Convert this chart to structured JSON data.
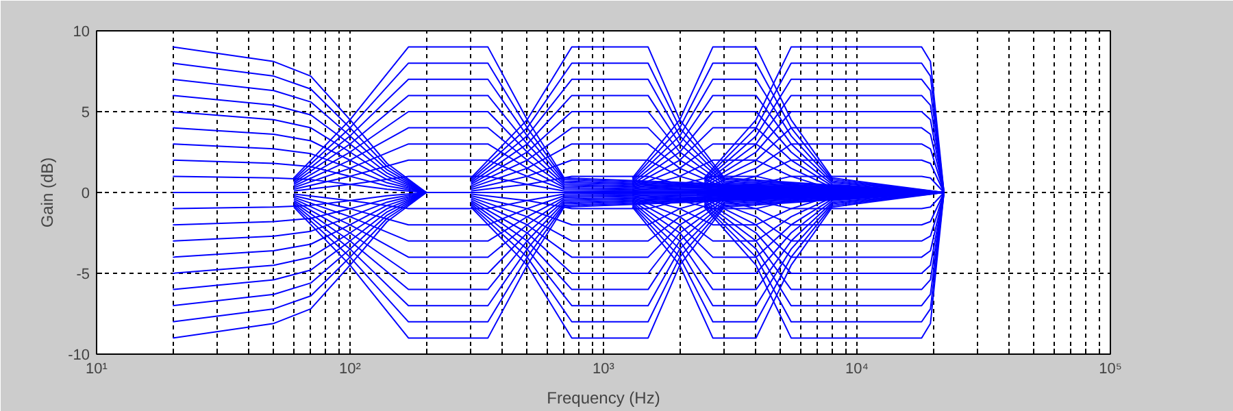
{
  "chart_data": {
    "type": "line",
    "xlabel": "Frequency (Hz)",
    "ylabel": "Gain (dB)",
    "log": "x",
    "grid": true,
    "xlim": [
      10,
      100000
    ],
    "ylim": [
      -10,
      10
    ],
    "xticks": [
      {
        "value": 10,
        "label": "10¹"
      },
      {
        "value": 20,
        "label": null
      },
      {
        "value": 30,
        "label": null
      },
      {
        "value": 40,
        "label": null
      },
      {
        "value": 50,
        "label": null
      },
      {
        "value": 60,
        "label": null
      },
      {
        "value": 70,
        "label": null
      },
      {
        "value": 80,
        "label": null
      },
      {
        "value": 90,
        "label": null
      },
      {
        "value": 100,
        "label": "10²"
      },
      {
        "value": 200,
        "label": null
      },
      {
        "value": 300,
        "label": null
      },
      {
        "value": 400,
        "label": null
      },
      {
        "value": 500,
        "label": null
      },
      {
        "value": 600,
        "label": null
      },
      {
        "value": 700,
        "label": null
      },
      {
        "value": 800,
        "label": null
      },
      {
        "value": 900,
        "label": null
      },
      {
        "value": 1000,
        "label": "10³"
      },
      {
        "value": 2000,
        "label": null
      },
      {
        "value": 3000,
        "label": null
      },
      {
        "value": 4000,
        "label": null
      },
      {
        "value": 5000,
        "label": null
      },
      {
        "value": 6000,
        "label": null
      },
      {
        "value": 7000,
        "label": null
      },
      {
        "value": 8000,
        "label": null
      },
      {
        "value": 9000,
        "label": null
      },
      {
        "value": 10000,
        "label": "10⁴"
      },
      {
        "value": 20000,
        "label": null
      },
      {
        "value": 30000,
        "label": null
      },
      {
        "value": 40000,
        "label": null
      },
      {
        "value": 50000,
        "label": null
      },
      {
        "value": 60000,
        "label": null
      },
      {
        "value": 70000,
        "label": null
      },
      {
        "value": 80000,
        "label": null
      },
      {
        "value": 90000,
        "label": null
      },
      {
        "value": 100000,
        "label": "10⁵"
      }
    ],
    "yticks": [
      -10,
      -5,
      0,
      5,
      10
    ],
    "series": [
      {
        "color": "#0000ff",
        "x": [
          20,
          40
        ],
        "values": [
          0,
          0
        ]
      },
      {
        "color": "#0000ff",
        "x": [
          20,
          50,
          70,
          100,
          140,
          200,
          22050
        ],
        "values": [
          9,
          8.1,
          7.2,
          4.5,
          1.8,
          0,
          0
        ]
      },
      {
        "color": "#0000ff",
        "x": [
          20,
          50,
          70,
          100,
          140,
          200,
          22050
        ],
        "values": [
          8,
          7.2,
          6.4,
          4,
          1.6,
          0,
          0
        ]
      },
      {
        "color": "#0000ff",
        "x": [
          20,
          50,
          70,
          100,
          140,
          200,
          22050
        ],
        "values": [
          7,
          6.3,
          5.6,
          3.5,
          1.4,
          0,
          0
        ]
      },
      {
        "color": "#0000ff",
        "x": [
          20,
          50,
          70,
          100,
          140,
          200,
          22050
        ],
        "values": [
          6,
          5.4,
          4.8,
          3,
          1.2,
          0,
          0
        ]
      },
      {
        "color": "#0000ff",
        "x": [
          20,
          50,
          70,
          100,
          140,
          200,
          22050
        ],
        "values": [
          5,
          4.5,
          4,
          2.5,
          1,
          0,
          0
        ]
      },
      {
        "color": "#0000ff",
        "x": [
          20,
          50,
          70,
          100,
          140,
          200,
          22050
        ],
        "values": [
          4,
          3.6,
          3.2,
          2,
          0.8,
          0,
          0
        ]
      },
      {
        "color": "#0000ff",
        "x": [
          20,
          50,
          70,
          100,
          140,
          200,
          22050
        ],
        "values": [
          3,
          2.7,
          2.4,
          1.5,
          0.6,
          0,
          0
        ]
      },
      {
        "color": "#0000ff",
        "x": [
          20,
          50,
          70,
          100,
          140,
          200,
          22050
        ],
        "values": [
          2,
          1.8,
          1.6,
          1,
          0.4,
          0,
          0
        ]
      },
      {
        "color": "#0000ff",
        "x": [
          20,
          50,
          70,
          100,
          140,
          200,
          22050
        ],
        "values": [
          1,
          0.9,
          0.8,
          0.5,
          0.2,
          0,
          0
        ]
      },
      {
        "color": "#0000ff",
        "x": [
          20,
          50,
          70,
          100,
          140,
          200,
          22050
        ],
        "values": [
          -1,
          -0.9,
          -0.8,
          -0.5,
          -0.2,
          0,
          0
        ]
      },
      {
        "color": "#0000ff",
        "x": [
          20,
          50,
          70,
          100,
          140,
          200,
          22050
        ],
        "values": [
          -2,
          -1.8,
          -1.6,
          -1,
          -0.4,
          0,
          0
        ]
      },
      {
        "color": "#0000ff",
        "x": [
          20,
          50,
          70,
          100,
          140,
          200,
          22050
        ],
        "values": [
          -3,
          -2.7,
          -2.4,
          -1.5,
          -0.6,
          0,
          0
        ]
      },
      {
        "color": "#0000ff",
        "x": [
          20,
          50,
          70,
          100,
          140,
          200,
          22050
        ],
        "values": [
          -4,
          -3.6,
          -3.2,
          -2,
          -0.8,
          0,
          0
        ]
      },
      {
        "color": "#0000ff",
        "x": [
          20,
          50,
          70,
          100,
          140,
          200,
          22050
        ],
        "values": [
          -5,
          -4.5,
          -4,
          -2.5,
          -1,
          0,
          0
        ]
      },
      {
        "color": "#0000ff",
        "x": [
          20,
          50,
          70,
          100,
          140,
          200,
          22050
        ],
        "values": [
          -6,
          -5.4,
          -4.8,
          -3,
          -1.2,
          0,
          0
        ]
      },
      {
        "color": "#0000ff",
        "x": [
          20,
          50,
          70,
          100,
          140,
          200,
          22050
        ],
        "values": [
          -7,
          -6.3,
          -5.6,
          -3.5,
          -1.4,
          0,
          0
        ]
      },
      {
        "color": "#0000ff",
        "x": [
          20,
          50,
          70,
          100,
          140,
          200,
          22050
        ],
        "values": [
          -8,
          -7.2,
          -6.4,
          -4,
          -1.6,
          0,
          0
        ]
      },
      {
        "color": "#0000ff",
        "x": [
          20,
          50,
          70,
          100,
          140,
          200,
          22050
        ],
        "values": [
          -9,
          -8.1,
          -7.2,
          -4.5,
          -1.8,
          0,
          0
        ]
      },
      {
        "color": "#0000ff",
        "x": [
          60,
          100,
          170,
          350,
          500,
          700,
          22050
        ],
        "values": [
          0.9,
          4.5,
          9,
          9,
          4.5,
          0.9,
          0
        ]
      },
      {
        "color": "#0000ff",
        "x": [
          60,
          100,
          170,
          350,
          500,
          700,
          22050
        ],
        "values": [
          0.8,
          4,
          8,
          8,
          4,
          0.8,
          0
        ]
      },
      {
        "color": "#0000ff",
        "x": [
          60,
          100,
          170,
          350,
          500,
          700,
          22050
        ],
        "values": [
          0.7,
          3.5,
          7,
          7,
          3.5,
          0.7,
          0
        ]
      },
      {
        "color": "#0000ff",
        "x": [
          60,
          100,
          170,
          350,
          500,
          700,
          22050
        ],
        "values": [
          0.6,
          3,
          6,
          6,
          3,
          0.6,
          0
        ]
      },
      {
        "color": "#0000ff",
        "x": [
          60,
          100,
          170,
          350,
          500,
          700,
          22050
        ],
        "values": [
          0.5,
          2.5,
          5,
          5,
          2.5,
          0.5,
          0
        ]
      },
      {
        "color": "#0000ff",
        "x": [
          60,
          100,
          170,
          350,
          500,
          700,
          22050
        ],
        "values": [
          0.4,
          2,
          4,
          4,
          2,
          0.4,
          0
        ]
      },
      {
        "color": "#0000ff",
        "x": [
          60,
          100,
          170,
          350,
          500,
          700,
          22050
        ],
        "values": [
          0.3,
          1.5,
          3,
          3,
          1.5,
          0.3,
          0
        ]
      },
      {
        "color": "#0000ff",
        "x": [
          60,
          100,
          170,
          350,
          500,
          700,
          22050
        ],
        "values": [
          0.2,
          1,
          2,
          2,
          1,
          0.2,
          0
        ]
      },
      {
        "color": "#0000ff",
        "x": [
          60,
          100,
          170,
          350,
          500,
          700,
          22050
        ],
        "values": [
          0.1,
          0.5,
          1,
          1,
          0.5,
          0.1,
          0
        ]
      },
      {
        "color": "#0000ff",
        "x": [
          60,
          100,
          170,
          350,
          500,
          700,
          22050
        ],
        "values": [
          -0.1,
          -0.5,
          -1,
          -1,
          -0.5,
          -0.1,
          0
        ]
      },
      {
        "color": "#0000ff",
        "x": [
          60,
          100,
          170,
          350,
          500,
          700,
          22050
        ],
        "values": [
          -0.2,
          -1,
          -2,
          -2,
          -1,
          -0.2,
          0
        ]
      },
      {
        "color": "#0000ff",
        "x": [
          60,
          100,
          170,
          350,
          500,
          700,
          22050
        ],
        "values": [
          -0.3,
          -1.5,
          -3,
          -3,
          -1.5,
          -0.3,
          0
        ]
      },
      {
        "color": "#0000ff",
        "x": [
          60,
          100,
          170,
          350,
          500,
          700,
          22050
        ],
        "values": [
          -0.4,
          -2,
          -4,
          -4,
          -2,
          -0.4,
          0
        ]
      },
      {
        "color": "#0000ff",
        "x": [
          60,
          100,
          170,
          350,
          500,
          700,
          22050
        ],
        "values": [
          -0.5,
          -2.5,
          -5,
          -5,
          -2.5,
          -0.5,
          0
        ]
      },
      {
        "color": "#0000ff",
        "x": [
          60,
          100,
          170,
          350,
          500,
          700,
          22050
        ],
        "values": [
          -0.6,
          -3,
          -6,
          -6,
          -3,
          -0.6,
          0
        ]
      },
      {
        "color": "#0000ff",
        "x": [
          60,
          100,
          170,
          350,
          500,
          700,
          22050
        ],
        "values": [
          -0.7,
          -3.5,
          -7,
          -7,
          -3.5,
          -0.7,
          0
        ]
      },
      {
        "color": "#0000ff",
        "x": [
          60,
          100,
          170,
          350,
          500,
          700,
          22050
        ],
        "values": [
          -0.8,
          -4,
          -8,
          -8,
          -4,
          -0.8,
          0
        ]
      },
      {
        "color": "#0000ff",
        "x": [
          60,
          100,
          170,
          350,
          500,
          700,
          22050
        ],
        "values": [
          -0.9,
          -4.5,
          -9,
          -9,
          -4.5,
          -0.9,
          0
        ]
      },
      {
        "color": "#0000ff",
        "x": [
          300,
          500,
          750,
          1500,
          2000,
          3000,
          22050
        ],
        "values": [
          0.9,
          4.5,
          9,
          9,
          4.5,
          0.9,
          0
        ]
      },
      {
        "color": "#0000ff",
        "x": [
          300,
          500,
          750,
          1500,
          2000,
          3000,
          22050
        ],
        "values": [
          0.8,
          4,
          8,
          8,
          4,
          0.8,
          0
        ]
      },
      {
        "color": "#0000ff",
        "x": [
          300,
          500,
          750,
          1500,
          2000,
          3000,
          22050
        ],
        "values": [
          0.7,
          3.5,
          7,
          7,
          3.5,
          0.7,
          0
        ]
      },
      {
        "color": "#0000ff",
        "x": [
          300,
          500,
          750,
          1500,
          2000,
          3000,
          22050
        ],
        "values": [
          0.6,
          3,
          6,
          6,
          3,
          0.6,
          0
        ]
      },
      {
        "color": "#0000ff",
        "x": [
          300,
          500,
          750,
          1500,
          2000,
          3000,
          22050
        ],
        "values": [
          0.5,
          2.5,
          5,
          5,
          2.5,
          0.5,
          0
        ]
      },
      {
        "color": "#0000ff",
        "x": [
          300,
          500,
          750,
          1500,
          2000,
          3000,
          22050
        ],
        "values": [
          0.4,
          2,
          4,
          4,
          2,
          0.4,
          0
        ]
      },
      {
        "color": "#0000ff",
        "x": [
          300,
          500,
          750,
          1500,
          2000,
          3000,
          22050
        ],
        "values": [
          0.3,
          1.5,
          3,
          3,
          1.5,
          0.3,
          0
        ]
      },
      {
        "color": "#0000ff",
        "x": [
          300,
          500,
          750,
          1500,
          2000,
          3000,
          22050
        ],
        "values": [
          0.2,
          1,
          2,
          2,
          1,
          0.2,
          0
        ]
      },
      {
        "color": "#0000ff",
        "x": [
          300,
          500,
          750,
          1500,
          2000,
          3000,
          22050
        ],
        "values": [
          0.1,
          0.5,
          1,
          1,
          0.5,
          0.1,
          0
        ]
      },
      {
        "color": "#0000ff",
        "x": [
          300,
          500,
          750,
          1500,
          2000,
          3000,
          22050
        ],
        "values": [
          -0.1,
          -0.5,
          -1,
          -1,
          -0.5,
          -0.1,
          0
        ]
      },
      {
        "color": "#0000ff",
        "x": [
          300,
          500,
          750,
          1500,
          2000,
          3000,
          22050
        ],
        "values": [
          -0.2,
          -1,
          -2,
          -2,
          -1,
          -0.2,
          0
        ]
      },
      {
        "color": "#0000ff",
        "x": [
          300,
          500,
          750,
          1500,
          2000,
          3000,
          22050
        ],
        "values": [
          -0.3,
          -1.5,
          -3,
          -3,
          -1.5,
          -0.3,
          0
        ]
      },
      {
        "color": "#0000ff",
        "x": [
          300,
          500,
          750,
          1500,
          2000,
          3000,
          22050
        ],
        "values": [
          -0.4,
          -2,
          -4,
          -4,
          -2,
          -0.4,
          0
        ]
      },
      {
        "color": "#0000ff",
        "x": [
          300,
          500,
          750,
          1500,
          2000,
          3000,
          22050
        ],
        "values": [
          -0.5,
          -2.5,
          -5,
          -5,
          -2.5,
          -0.5,
          0
        ]
      },
      {
        "color": "#0000ff",
        "x": [
          300,
          500,
          750,
          1500,
          2000,
          3000,
          22050
        ],
        "values": [
          -0.6,
          -3,
          -6,
          -6,
          -3,
          -0.6,
          0
        ]
      },
      {
        "color": "#0000ff",
        "x": [
          300,
          500,
          750,
          1500,
          2000,
          3000,
          22050
        ],
        "values": [
          -0.7,
          -3.5,
          -7,
          -7,
          -3.5,
          -0.7,
          0
        ]
      },
      {
        "color": "#0000ff",
        "x": [
          300,
          500,
          750,
          1500,
          2000,
          3000,
          22050
        ],
        "values": [
          -0.8,
          -4,
          -8,
          -8,
          -4,
          -0.8,
          0
        ]
      },
      {
        "color": "#0000ff",
        "x": [
          300,
          500,
          750,
          1500,
          2000,
          3000,
          22050
        ],
        "values": [
          -0.9,
          -4.5,
          -9,
          -9,
          -4.5,
          -0.9,
          0
        ]
      },
      {
        "color": "#0000ff",
        "x": [
          1300,
          2000,
          2700,
          4000,
          5500,
          8000,
          22050
        ],
        "values": [
          0.9,
          4.5,
          9,
          9,
          4.5,
          0.9,
          0
        ]
      },
      {
        "color": "#0000ff",
        "x": [
          1300,
          2000,
          2700,
          4000,
          5500,
          8000,
          22050
        ],
        "values": [
          0.8,
          4,
          8,
          8,
          4,
          0.8,
          0
        ]
      },
      {
        "color": "#0000ff",
        "x": [
          1300,
          2000,
          2700,
          4000,
          5500,
          8000,
          22050
        ],
        "values": [
          0.7,
          3.5,
          7,
          7,
          3.5,
          0.7,
          0
        ]
      },
      {
        "color": "#0000ff",
        "x": [
          1300,
          2000,
          2700,
          4000,
          5500,
          8000,
          22050
        ],
        "values": [
          0.6,
          3,
          6,
          6,
          3,
          0.6,
          0
        ]
      },
      {
        "color": "#0000ff",
        "x": [
          1300,
          2000,
          2700,
          4000,
          5500,
          8000,
          22050
        ],
        "values": [
          0.5,
          2.5,
          5,
          5,
          2.5,
          0.5,
          0
        ]
      },
      {
        "color": "#0000ff",
        "x": [
          1300,
          2000,
          2700,
          4000,
          5500,
          8000,
          22050
        ],
        "values": [
          0.4,
          2,
          4,
          4,
          2,
          0.4,
          0
        ]
      },
      {
        "color": "#0000ff",
        "x": [
          1300,
          2000,
          2700,
          4000,
          5500,
          8000,
          22050
        ],
        "values": [
          0.3,
          1.5,
          3,
          3,
          1.5,
          0.3,
          0
        ]
      },
      {
        "color": "#0000ff",
        "x": [
          1300,
          2000,
          2700,
          4000,
          5500,
          8000,
          22050
        ],
        "values": [
          0.2,
          1,
          2,
          2,
          1,
          0.2,
          0
        ]
      },
      {
        "color": "#0000ff",
        "x": [
          1300,
          2000,
          2700,
          4000,
          5500,
          8000,
          22050
        ],
        "values": [
          0.1,
          0.5,
          1,
          1,
          0.5,
          0.1,
          0
        ]
      },
      {
        "color": "#0000ff",
        "x": [
          1300,
          2000,
          2700,
          4000,
          5500,
          8000,
          22050
        ],
        "values": [
          -0.1,
          -0.5,
          -1,
          -1,
          -0.5,
          -0.1,
          0
        ]
      },
      {
        "color": "#0000ff",
        "x": [
          1300,
          2000,
          2700,
          4000,
          5500,
          8000,
          22050
        ],
        "values": [
          -0.2,
          -1,
          -2,
          -2,
          -1,
          -0.2,
          0
        ]
      },
      {
        "color": "#0000ff",
        "x": [
          1300,
          2000,
          2700,
          4000,
          5500,
          8000,
          22050
        ],
        "values": [
          -0.3,
          -1.5,
          -3,
          -3,
          -1.5,
          -0.3,
          0
        ]
      },
      {
        "color": "#0000ff",
        "x": [
          1300,
          2000,
          2700,
          4000,
          5500,
          8000,
          22050
        ],
        "values": [
          -0.4,
          -2,
          -4,
          -4,
          -2,
          -0.4,
          0
        ]
      },
      {
        "color": "#0000ff",
        "x": [
          1300,
          2000,
          2700,
          4000,
          5500,
          8000,
          22050
        ],
        "values": [
          -0.5,
          -2.5,
          -5,
          -5,
          -2.5,
          -0.5,
          0
        ]
      },
      {
        "color": "#0000ff",
        "x": [
          1300,
          2000,
          2700,
          4000,
          5500,
          8000,
          22050
        ],
        "values": [
          -0.6,
          -3,
          -6,
          -6,
          -3,
          -0.6,
          0
        ]
      },
      {
        "color": "#0000ff",
        "x": [
          1300,
          2000,
          2700,
          4000,
          5500,
          8000,
          22050
        ],
        "values": [
          -0.7,
          -3.5,
          -7,
          -7,
          -3.5,
          -0.7,
          0
        ]
      },
      {
        "color": "#0000ff",
        "x": [
          1300,
          2000,
          2700,
          4000,
          5500,
          8000,
          22050
        ],
        "values": [
          -0.8,
          -4,
          -8,
          -8,
          -4,
          -0.8,
          0
        ]
      },
      {
        "color": "#0000ff",
        "x": [
          1300,
          2000,
          2700,
          4000,
          5500,
          8000,
          22050
        ],
        "values": [
          -0.9,
          -4.5,
          -9,
          -9,
          -4.5,
          -0.9,
          0
        ]
      },
      {
        "color": "#0000ff",
        "x": [
          2500,
          4000,
          5500,
          18000,
          19500,
          22050
        ],
        "values": [
          0.9,
          4.5,
          9,
          9,
          8.1,
          0
        ]
      },
      {
        "color": "#0000ff",
        "x": [
          2500,
          4000,
          5500,
          18000,
          19500,
          22050
        ],
        "values": [
          0.8,
          4,
          8,
          8,
          7.2,
          0
        ]
      },
      {
        "color": "#0000ff",
        "x": [
          2500,
          4000,
          5500,
          18000,
          19500,
          22050
        ],
        "values": [
          0.7,
          3.5,
          7,
          7,
          6.3,
          0
        ]
      },
      {
        "color": "#0000ff",
        "x": [
          2500,
          4000,
          5500,
          18000,
          19500,
          22050
        ],
        "values": [
          0.6,
          3,
          6,
          6,
          5.4,
          0
        ]
      },
      {
        "color": "#0000ff",
        "x": [
          2500,
          4000,
          5500,
          18000,
          19500,
          22050
        ],
        "values": [
          0.5,
          2.5,
          5,
          5,
          4.5,
          0
        ]
      },
      {
        "color": "#0000ff",
        "x": [
          2500,
          4000,
          5500,
          18000,
          19500,
          22050
        ],
        "values": [
          0.4,
          2,
          4,
          4,
          3.6,
          0
        ]
      },
      {
        "color": "#0000ff",
        "x": [
          2500,
          4000,
          5500,
          18000,
          19500,
          22050
        ],
        "values": [
          0.3,
          1.5,
          3,
          3,
          2.7,
          0
        ]
      },
      {
        "color": "#0000ff",
        "x": [
          2500,
          4000,
          5500,
          18000,
          19500,
          22050
        ],
        "values": [
          0.2,
          1,
          2,
          2,
          1.8,
          0
        ]
      },
      {
        "color": "#0000ff",
        "x": [
          2500,
          4000,
          5500,
          18000,
          19500,
          22050
        ],
        "values": [
          0.1,
          0.5,
          1,
          1,
          0.9,
          0
        ]
      },
      {
        "color": "#0000ff",
        "x": [
          2500,
          4000,
          5500,
          18000,
          19500,
          22050
        ],
        "values": [
          -0.1,
          -0.5,
          -1,
          -1,
          -0.9,
          0
        ]
      },
      {
        "color": "#0000ff",
        "x": [
          2500,
          4000,
          5500,
          18000,
          19500,
          22050
        ],
        "values": [
          -0.2,
          -1,
          -2,
          -2,
          -1.8,
          0
        ]
      },
      {
        "color": "#0000ff",
        "x": [
          2500,
          4000,
          5500,
          18000,
          19500,
          22050
        ],
        "values": [
          -0.3,
          -1.5,
          -3,
          -3,
          -2.7,
          0
        ]
      },
      {
        "color": "#0000ff",
        "x": [
          2500,
          4000,
          5500,
          18000,
          19500,
          22050
        ],
        "values": [
          -0.4,
          -2,
          -4,
          -4,
          -3.6,
          0
        ]
      },
      {
        "color": "#0000ff",
        "x": [
          2500,
          4000,
          5500,
          18000,
          19500,
          22050
        ],
        "values": [
          -0.5,
          -2.5,
          -5,
          -5,
          -4.5,
          0
        ]
      },
      {
        "color": "#0000ff",
        "x": [
          2500,
          4000,
          5500,
          18000,
          19500,
          22050
        ],
        "values": [
          -0.6,
          -3,
          -6,
          -6,
          -5.4,
          0
        ]
      },
      {
        "color": "#0000ff",
        "x": [
          2500,
          4000,
          5500,
          18000,
          19500,
          22050
        ],
        "values": [
          -0.7,
          -3.5,
          -7,
          -7,
          -6.3,
          0
        ]
      },
      {
        "color": "#0000ff",
        "x": [
          2500,
          4000,
          5500,
          18000,
          19500,
          22050
        ],
        "values": [
          -0.8,
          -4,
          -8,
          -8,
          -7.2,
          0
        ]
      },
      {
        "color": "#0000ff",
        "x": [
          2500,
          4000,
          5500,
          18000,
          19500,
          22050
        ],
        "values": [
          -0.9,
          -4.5,
          -9,
          -9,
          -8.1,
          0
        ]
      }
    ]
  }
}
